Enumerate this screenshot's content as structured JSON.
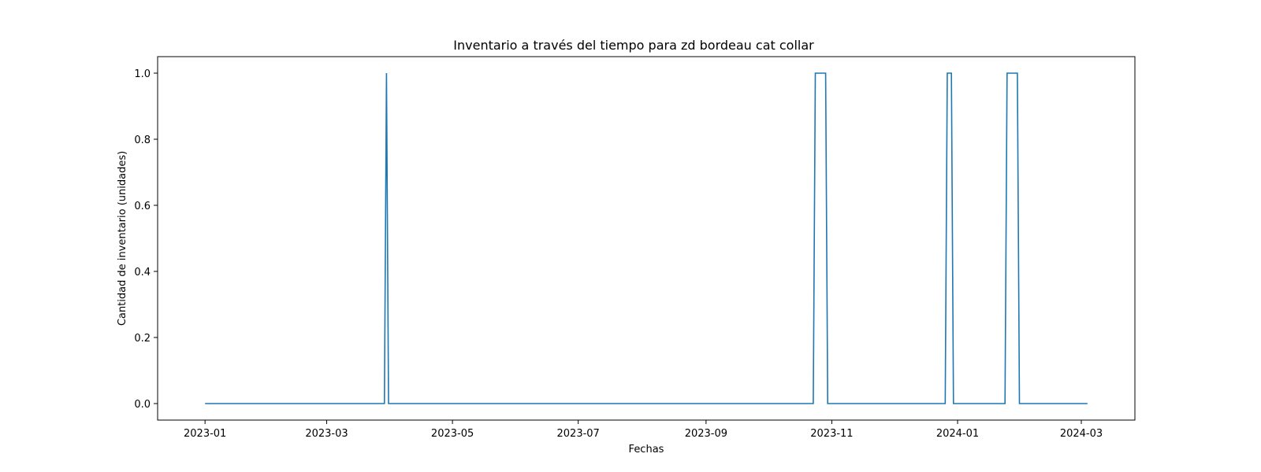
{
  "chart_data": {
    "type": "line",
    "title": "Inventario a través del tiempo para zd bordeau cat collar",
    "xlabel": "Fechas",
    "ylabel": "Cantidad de inventario (unidades)",
    "x_axis_type": "date",
    "xlim": [
      "2022-12-09",
      "2024-03-27"
    ],
    "ylim": [
      -0.05,
      1.05
    ],
    "x_ticks": [
      "2023-01",
      "2023-03",
      "2023-05",
      "2023-07",
      "2023-09",
      "2023-11",
      "2024-01",
      "2024-03"
    ],
    "y_ticks": [
      "0.0",
      "0.2",
      "0.4",
      "0.6",
      "0.8",
      "1.0"
    ],
    "grid": false,
    "series": [
      {
        "color": "#1f77b4",
        "points": [
          [
            "2023-01-01",
            0
          ],
          [
            "2023-03-29",
            0
          ],
          [
            "2023-03-30",
            1
          ],
          [
            "2023-03-31",
            0
          ],
          [
            "2023-10-23",
            0
          ],
          [
            "2023-10-24",
            1
          ],
          [
            "2023-10-29",
            1
          ],
          [
            "2023-10-30",
            0
          ],
          [
            "2023-12-26",
            0
          ],
          [
            "2023-12-27",
            1
          ],
          [
            "2023-12-29",
            1
          ],
          [
            "2023-12-30",
            0
          ],
          [
            "2024-01-24",
            0
          ],
          [
            "2024-01-25",
            1
          ],
          [
            "2024-01-30",
            1
          ],
          [
            "2024-01-31",
            0
          ],
          [
            "2024-03-04",
            0
          ]
        ]
      }
    ]
  }
}
